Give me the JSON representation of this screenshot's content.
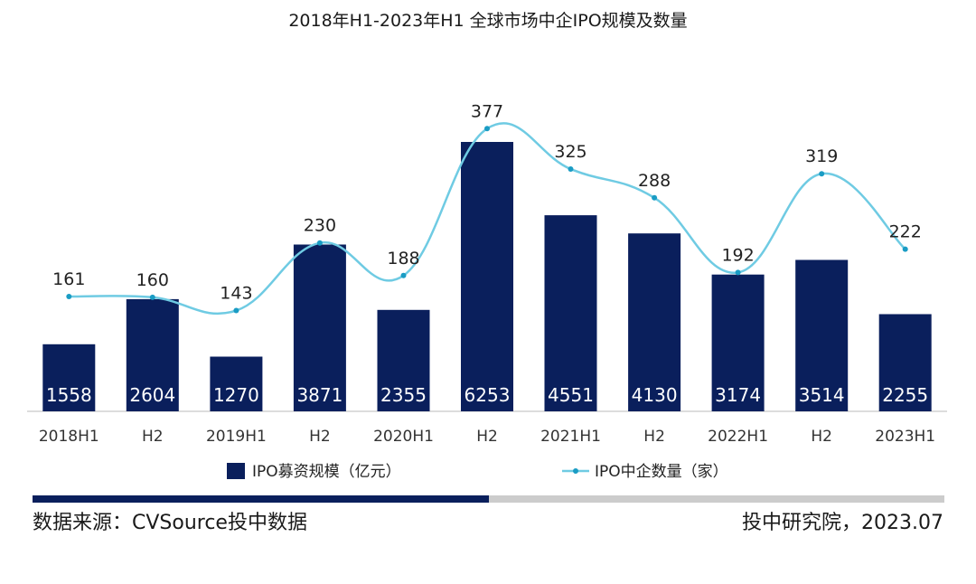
{
  "chart_data": {
    "type": "bar",
    "title": "2018年H1-2023年H1  全球市场中企IPO规模及数量",
    "categories": [
      "2018H1",
      "H2",
      "2019H1",
      "H2",
      "2020H1",
      "H2",
      "2021H1",
      "H2",
      "2022H1",
      "H2",
      "2023H1"
    ],
    "series": [
      {
        "name": "IPO募资规模（亿元）",
        "type": "bar",
        "color": "#0a1f5c",
        "values": [
          1558,
          2604,
          1270,
          3871,
          2355,
          6253,
          4551,
          4130,
          3174,
          3514,
          2255
        ]
      },
      {
        "name": "IPO中企数量（家）",
        "type": "line",
        "color": "#6fcbe3",
        "values": [
          161,
          160,
          143,
          230,
          188,
          377,
          325,
          288,
          192,
          319,
          222
        ]
      }
    ],
    "legend_position": "bottom"
  },
  "footer": {
    "source_text": "数据来源：CVSource投中数据",
    "credit_text": "投中研究院，2023.07"
  }
}
